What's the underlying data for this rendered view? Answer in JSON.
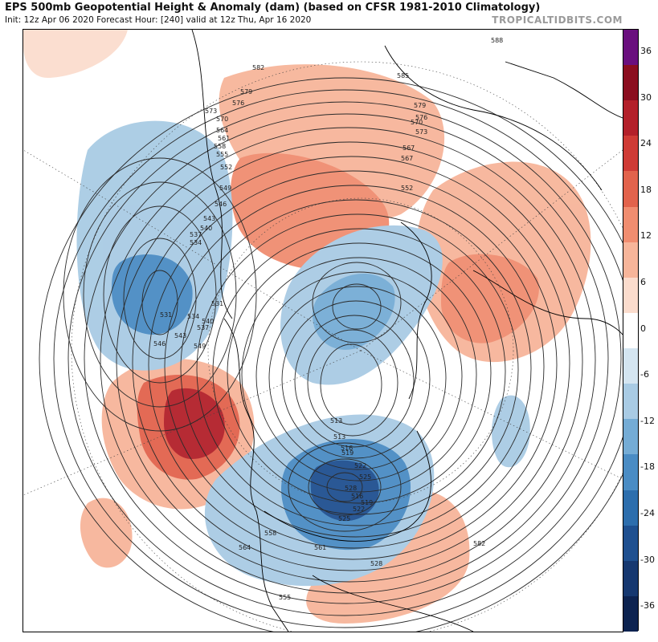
{
  "header": {
    "title": "EPS 500mb Geopotential Height & Anomaly (dam) (based on CFSR 1981-2010 Climatology)",
    "subtitle": "Init: 12z Apr 06 2020   Forecast Hour: [240]   valid at 12z Thu, Apr 16 2020",
    "credit": "TROPICALTIDBITS.COM"
  },
  "colorbar": {
    "labels": [
      "36",
      "30",
      "24",
      "18",
      "12",
      "6",
      "0",
      "-6",
      "-12",
      "-18",
      "-24",
      "-30",
      "-36"
    ],
    "colors": [
      "#6a0f7e",
      "#8b0e1f",
      "#b3202a",
      "#cf3b35",
      "#e2634c",
      "#f08d70",
      "#f7b59a",
      "#fbdccd",
      "#ffffff",
      "#d4e5f1",
      "#a9cbe4",
      "#75acd5",
      "#4a8cc4",
      "#2d6ead",
      "#1f5090",
      "#163870",
      "#0d2350"
    ]
  },
  "map": {
    "contour_labels": [
      "588",
      "585",
      "582",
      "579",
      "576",
      "573",
      "570",
      "567",
      "564",
      "561",
      "558",
      "555",
      "552",
      "549",
      "546",
      "543",
      "540",
      "537",
      "534",
      "531",
      "528",
      "525",
      "522",
      "519",
      "516",
      "513",
      "582",
      "579",
      "576",
      "573",
      "570",
      "567",
      "564",
      "561",
      "558",
      "555",
      "552",
      "549",
      "546",
      "543",
      "540",
      "537",
      "534",
      "531",
      "528",
      "525",
      "522",
      "519",
      "516",
      "513"
    ],
    "anomaly_colors": {
      "strong_positive": "#b3202a",
      "positive": "#e2634c",
      "weak_positive": "#f7b59a",
      "weak_negative": "#a9cbe4",
      "negative": "#4a8cc4",
      "strong_negative": "#1f5090"
    }
  }
}
